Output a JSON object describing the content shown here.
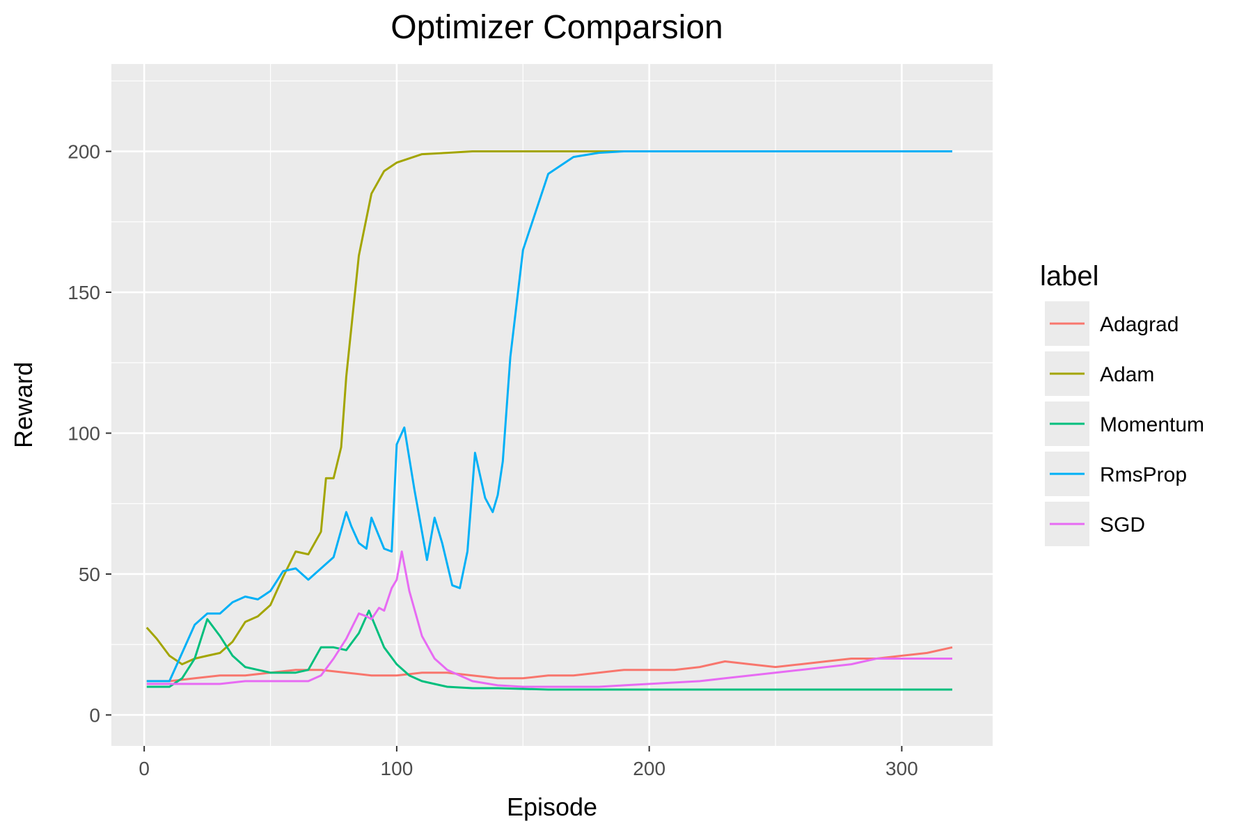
{
  "chart_data": {
    "type": "line",
    "title": "Optimizer Comparsion",
    "xlabel": "Episode",
    "ylabel": "Reward",
    "xlim": [
      -13,
      336
    ],
    "ylim": [
      -11,
      231
    ],
    "xticks": [
      0,
      100,
      200,
      300
    ],
    "yticks": [
      0,
      50,
      100,
      150,
      200
    ],
    "grid": true,
    "legend": {
      "title": "label",
      "placement": "right"
    },
    "series": [
      {
        "name": "Adagrad",
        "color": "#F8766D",
        "x": [
          1,
          10,
          20,
          30,
          40,
          50,
          60,
          70,
          80,
          90,
          100,
          110,
          120,
          130,
          140,
          150,
          160,
          170,
          180,
          190,
          200,
          210,
          220,
          230,
          240,
          250,
          260,
          270,
          280,
          290,
          300,
          310,
          320
        ],
        "y": [
          12,
          12,
          13,
          14,
          14,
          15,
          16,
          16,
          15,
          14,
          14,
          15,
          15,
          14,
          13,
          13,
          14,
          14,
          15,
          16,
          16,
          16,
          17,
          19,
          18,
          17,
          18,
          19,
          20,
          20,
          21,
          22,
          24
        ]
      },
      {
        "name": "Adam",
        "color": "#A3A500",
        "x": [
          1,
          5,
          10,
          15,
          20,
          25,
          30,
          35,
          40,
          45,
          50,
          55,
          60,
          65,
          70,
          72,
          75,
          78,
          80,
          85,
          90,
          95,
          100,
          110,
          120,
          130,
          150,
          200,
          320
        ],
        "y": [
          31,
          27,
          21,
          18,
          20,
          21,
          22,
          26,
          33,
          35,
          39,
          49,
          58,
          57,
          65,
          84,
          84,
          95,
          120,
          163,
          185,
          193,
          196,
          199,
          199.5,
          200,
          200,
          200,
          200
        ]
      },
      {
        "name": "Momentum",
        "color": "#00BF7D",
        "x": [
          1,
          10,
          15,
          20,
          25,
          30,
          35,
          40,
          45,
          50,
          55,
          60,
          65,
          70,
          75,
          80,
          85,
          89,
          95,
          100,
          105,
          110,
          120,
          130,
          140,
          160,
          200,
          250,
          320
        ],
        "y": [
          10,
          10,
          13,
          20,
          34,
          28,
          21,
          17,
          16,
          15,
          15,
          15,
          16,
          24,
          24,
          23,
          29,
          37,
          24,
          18,
          14,
          12,
          10,
          9.5,
          9.5,
          9,
          9,
          9,
          9
        ]
      },
      {
        "name": "RmsProp",
        "color": "#00B0F6",
        "x": [
          1,
          10,
          15,
          20,
          25,
          30,
          35,
          40,
          45,
          50,
          55,
          60,
          65,
          70,
          75,
          80,
          82,
          85,
          88,
          90,
          95,
          98,
          100,
          103,
          107,
          112,
          115,
          118,
          122,
          125,
          128,
          131,
          135,
          138,
          140,
          142,
          145,
          150,
          160,
          170,
          180,
          190,
          200,
          250,
          320
        ],
        "y": [
          12,
          12,
          22,
          32,
          36,
          36,
          40,
          42,
          41,
          44,
          51,
          52,
          48,
          52,
          56,
          72,
          67,
          61,
          59,
          70,
          59,
          58,
          96,
          102,
          80,
          55,
          70,
          61,
          46,
          45,
          58,
          93,
          77,
          72,
          78,
          90,
          127,
          165,
          192,
          198,
          199.5,
          200,
          200,
          200,
          200
        ]
      },
      {
        "name": "SGD",
        "color": "#E76BF3",
        "x": [
          1,
          10,
          20,
          30,
          40,
          50,
          60,
          65,
          70,
          75,
          80,
          85,
          88,
          90,
          93,
          95,
          98,
          100,
          102,
          105,
          110,
          115,
          120,
          130,
          140,
          150,
          160,
          170,
          180,
          190,
          200,
          210,
          220,
          230,
          240,
          250,
          260,
          270,
          280,
          290,
          300,
          310,
          320
        ],
        "y": [
          11,
          11,
          11,
          11,
          12,
          12,
          12,
          12,
          14,
          20,
          27,
          36,
          35,
          34,
          38,
          37,
          45,
          48,
          58,
          44,
          28,
          20,
          16,
          12,
          10.5,
          10,
          10,
          10,
          10,
          10.5,
          11,
          11.5,
          12,
          13,
          14,
          15,
          16,
          17,
          18,
          20,
          20,
          20,
          20
        ]
      }
    ]
  }
}
